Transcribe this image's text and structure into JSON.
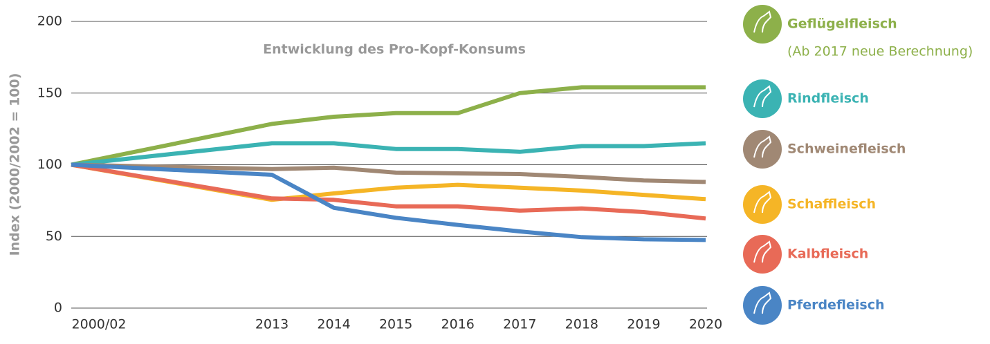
{
  "chart_data": {
    "type": "line",
    "title": "Entwicklung des Pro-Kopf-Konsums",
    "y_label": "Index (2000/2002 = 100)",
    "categories": [
      "2000/02",
      "2013",
      "2014",
      "2015",
      "2016",
      "2017",
      "2018",
      "2019",
      "2020"
    ],
    "ylim": [
      0,
      200
    ],
    "yticks": [
      0,
      50,
      100,
      150,
      200
    ],
    "grid": true,
    "legend_note": "(Ab 2017 neue Berechnung)",
    "series": [
      {
        "name": "Geflügelfleisch",
        "color": "#8db04a",
        "values": [
          100,
          128.5,
          133.5,
          136,
          136,
          150,
          154,
          154,
          154
        ]
      },
      {
        "name": "Rindfleisch",
        "color": "#3bb3b3",
        "values": [
          100,
          115,
          115,
          111,
          111,
          109,
          113,
          113,
          115
        ]
      },
      {
        "name": "Schweinefleisch",
        "color": "#a08874",
        "values": [
          100,
          97,
          98,
          94.5,
          94,
          93.5,
          91.5,
          89,
          88
        ]
      },
      {
        "name": "Schaffleisch",
        "color": "#f5b526",
        "values": [
          100,
          75.5,
          80,
          84,
          86,
          84,
          82,
          79,
          76
        ]
      },
      {
        "name": "Kalbfleisch",
        "color": "#e86a57",
        "values": [
          100,
          76.5,
          75.5,
          71,
          71,
          68,
          69.5,
          67,
          62.5
        ]
      },
      {
        "name": "Pferdefleisch",
        "color": "#4a85c5",
        "values": [
          100,
          93,
          70,
          63,
          58,
          53.5,
          49.5,
          48,
          47.5
        ]
      }
    ]
  }
}
